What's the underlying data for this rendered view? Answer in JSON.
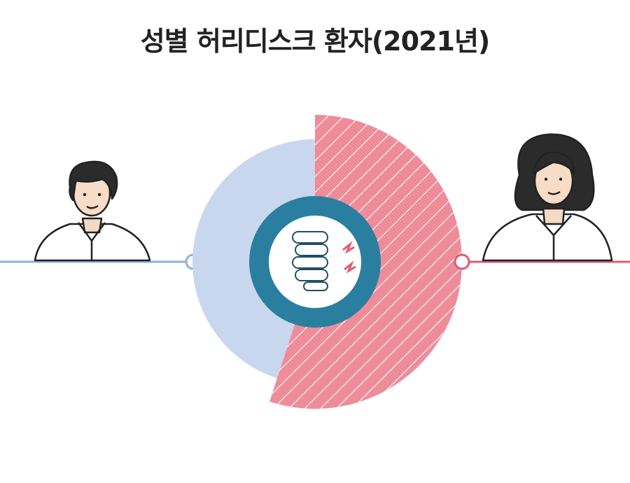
{
  "title": "성별 허리디스크 환자(2021년)",
  "colors": {
    "male": "#c9d7ee",
    "male_line": "#8fb0de",
    "female": "#ee8c9a",
    "female_line": "#e05a72",
    "center_ring": "#2a7fa0",
    "text": "#222222"
  },
  "icons": {
    "male": "man-icon",
    "female": "woman-icon",
    "center": "spine-icon"
  },
  "chart_data": {
    "type": "pie",
    "title": "성별 허리디스크 환자(2021년)",
    "values": [
      45,
      55
    ]
  }
}
